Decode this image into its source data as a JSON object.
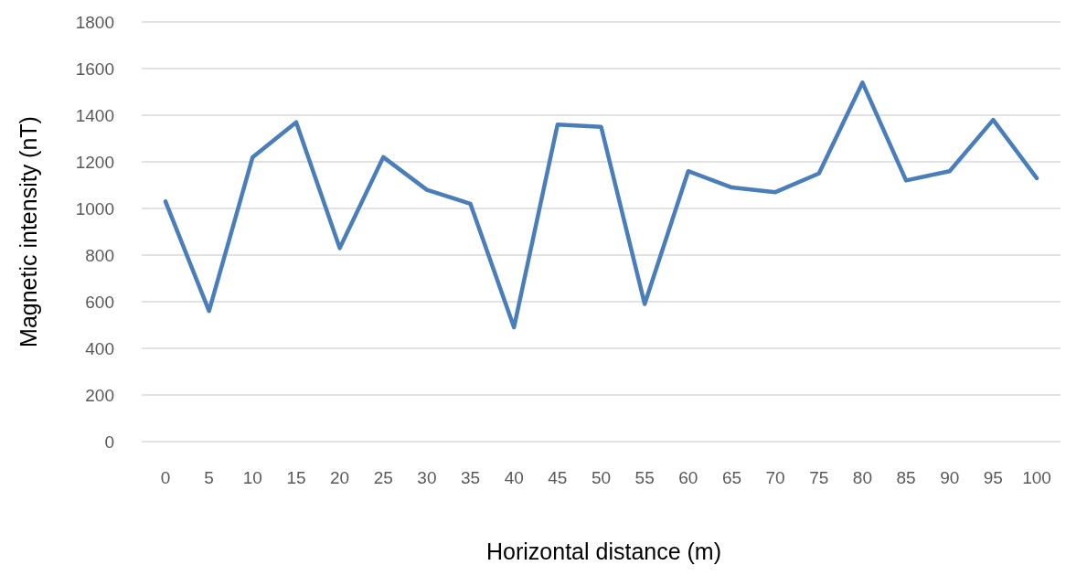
{
  "chart_data": {
    "type": "line",
    "xlabel": "Horizontal distance (m)",
    "ylabel": "Magnetic intensity (nT)",
    "categories": [
      "0",
      "5",
      "10",
      "15",
      "20",
      "25",
      "30",
      "35",
      "40",
      "45",
      "50",
      "55",
      "60",
      "65",
      "70",
      "75",
      "80",
      "85",
      "90",
      "95",
      "100"
    ],
    "series": [
      {
        "color": "#4a7ebb",
        "values": [
          1030,
          560,
          1220,
          1370,
          830,
          1220,
          1080,
          1020,
          490,
          1360,
          1350,
          590,
          1160,
          1090,
          1070,
          1150,
          1540,
          1120,
          1160,
          1380,
          1130
        ]
      }
    ],
    "ylim": [
      0,
      1800
    ],
    "yticks": [
      0,
      200,
      400,
      600,
      800,
      1000,
      1200,
      1400,
      1600,
      1800
    ],
    "grid": "y",
    "marker": "none",
    "line_style": "solid"
  }
}
